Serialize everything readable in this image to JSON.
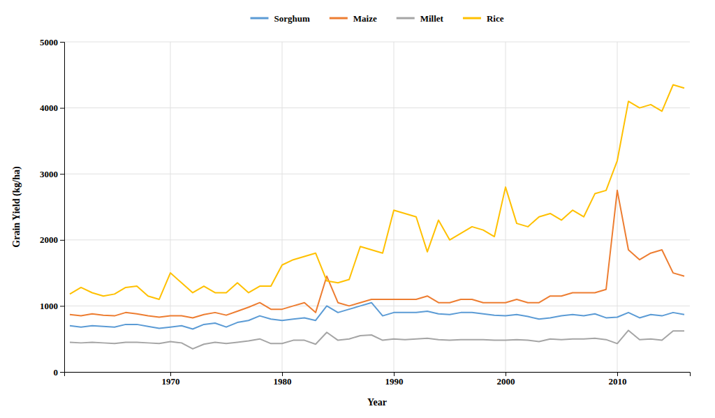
{
  "chart_data": {
    "type": "line",
    "xlabel": "Year",
    "ylabel": "Grain Yield (kg/ha)",
    "x": [
      1961,
      1962,
      1963,
      1964,
      1965,
      1966,
      1967,
      1968,
      1969,
      1970,
      1971,
      1972,
      1973,
      1974,
      1975,
      1976,
      1977,
      1978,
      1979,
      1980,
      1981,
      1982,
      1983,
      1984,
      1985,
      1986,
      1987,
      1988,
      1989,
      1990,
      1991,
      1992,
      1993,
      1994,
      1995,
      1996,
      1997,
      1998,
      1999,
      2000,
      2001,
      2002,
      2003,
      2004,
      2005,
      2006,
      2007,
      2008,
      2009,
      2010,
      2011,
      2012,
      2013,
      2014,
      2015,
      2016
    ],
    "series": [
      {
        "name": "Sorghum",
        "color": "#5B9BD5",
        "values": [
          700,
          680,
          700,
          690,
          680,
          720,
          720,
          690,
          660,
          680,
          700,
          650,
          720,
          740,
          680,
          750,
          780,
          850,
          800,
          780,
          800,
          820,
          780,
          1000,
          900,
          950,
          1000,
          1050,
          850,
          900,
          900,
          900,
          920,
          880,
          870,
          900,
          900,
          880,
          860,
          850,
          870,
          840,
          800,
          820,
          850,
          870,
          850,
          880,
          820,
          830,
          900,
          820,
          870,
          850,
          900,
          870
        ]
      },
      {
        "name": "Maize",
        "color": "#ED7D31",
        "values": [
          870,
          850,
          880,
          860,
          850,
          900,
          880,
          850,
          830,
          850,
          850,
          820,
          870,
          900,
          860,
          920,
          980,
          1050,
          950,
          950,
          1000,
          1050,
          900,
          1450,
          1050,
          1000,
          1050,
          1100,
          1100,
          1100,
          1100,
          1100,
          1150,
          1050,
          1050,
          1100,
          1100,
          1050,
          1050,
          1050,
          1100,
          1050,
          1050,
          1150,
          1150,
          1200,
          1200,
          1200,
          1250,
          2750,
          1850,
          1700,
          1800,
          1850,
          1500,
          1450
        ]
      },
      {
        "name": "Millet",
        "color": "#A5A5A5",
        "values": [
          450,
          440,
          450,
          440,
          430,
          450,
          450,
          440,
          430,
          460,
          440,
          350,
          420,
          450,
          430,
          450,
          470,
          500,
          430,
          430,
          480,
          480,
          420,
          600,
          480,
          500,
          550,
          560,
          480,
          500,
          490,
          500,
          510,
          490,
          480,
          490,
          490,
          490,
          480,
          480,
          490,
          480,
          460,
          500,
          490,
          500,
          500,
          510,
          490,
          430,
          630,
          490,
          500,
          480,
          620,
          620
        ]
      },
      {
        "name": "Rice",
        "color": "#FFC000",
        "values": [
          1180,
          1280,
          1200,
          1150,
          1180,
          1280,
          1300,
          1150,
          1100,
          1500,
          1350,
          1200,
          1300,
          1200,
          1200,
          1350,
          1200,
          1300,
          1300,
          1620,
          1700,
          1750,
          1800,
          1380,
          1350,
          1400,
          1900,
          1850,
          1800,
          2450,
          2400,
          2350,
          1820,
          2300,
          2000,
          2100,
          2200,
          2150,
          2050,
          2800,
          2250,
          2200,
          2350,
          2400,
          2300,
          2450,
          2350,
          2700,
          2750,
          3200,
          4100,
          4000,
          4050,
          3950,
          4350,
          4300
        ]
      }
    ],
    "xlim": [
      1960.5,
      2016.5
    ],
    "xticks": [
      1970,
      1980,
      1990,
      2000,
      2010
    ],
    "ylim": [
      0,
      5000
    ],
    "yticks": [
      0,
      1000,
      2000,
      3000,
      4000,
      5000
    ],
    "grid": true,
    "legend": "top"
  }
}
